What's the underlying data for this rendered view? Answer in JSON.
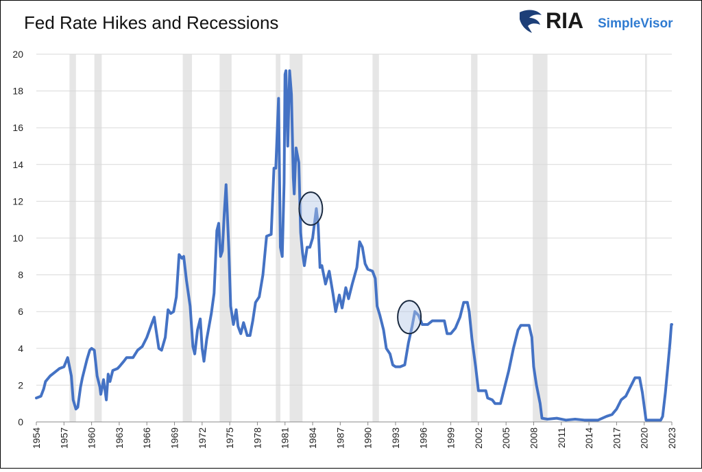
{
  "chart_data": {
    "type": "line",
    "title": "Fed Rate Hikes and Recessions",
    "logo": {
      "brand": "RIA",
      "product": "SimpleVisor"
    },
    "color": "#4472c4",
    "grid": true,
    "x": [
      1954.0,
      1954.5,
      1954.8,
      1955.0,
      1955.5,
      1956.0,
      1956.5,
      1957.0,
      1957.4,
      1957.8,
      1958.0,
      1958.3,
      1958.5,
      1958.8,
      1959.0,
      1959.5,
      1959.8,
      1960.0,
      1960.3,
      1960.6,
      1960.9,
      1961.0,
      1961.3,
      1961.6,
      1961.8,
      1962.0,
      1962.3,
      1962.8,
      1963.0,
      1963.5,
      1963.8,
      1964.5,
      1965.0,
      1965.5,
      1966.0,
      1966.5,
      1966.8,
      1967.0,
      1967.3,
      1967.6,
      1968.0,
      1968.3,
      1968.6,
      1968.9,
      1969.2,
      1969.5,
      1969.8,
      1970.0,
      1970.3,
      1970.7,
      1971.0,
      1971.2,
      1971.5,
      1971.8,
      1972.0,
      1972.2,
      1972.5,
      1973.0,
      1973.3,
      1973.6,
      1973.8,
      1974.0,
      1974.2,
      1974.4,
      1974.6,
      1974.9,
      1975.1,
      1975.4,
      1975.7,
      1975.9,
      1976.2,
      1976.5,
      1976.9,
      1977.2,
      1977.5,
      1977.8,
      1978.2,
      1978.6,
      1979.0,
      1979.5,
      1979.8,
      1980.0,
      1980.3,
      1980.5,
      1980.7,
      1980.9,
      1981.0,
      1981.1,
      1981.3,
      1981.5,
      1981.7,
      1981.9,
      1982.0,
      1982.2,
      1982.5,
      1982.7,
      1982.9,
      1983.1,
      1983.4,
      1983.7,
      1984.0,
      1984.4,
      1984.6,
      1984.8,
      1985.0,
      1985.4,
      1985.8,
      1986.2,
      1986.5,
      1986.9,
      1987.2,
      1987.6,
      1987.9,
      1988.3,
      1988.8,
      1989.1,
      1989.4,
      1989.7,
      1990.0,
      1990.5,
      1990.8,
      1991.0,
      1991.3,
      1991.7,
      1992.0,
      1992.4,
      1992.7,
      1993.0,
      1993.5,
      1994.0,
      1994.4,
      1994.8,
      1995.1,
      1995.5,
      1995.9,
      1996.5,
      1997.0,
      1997.5,
      1998.3,
      1998.6,
      1999.0,
      1999.5,
      2000.0,
      2000.4,
      2000.8,
      2001.0,
      2001.3,
      2001.7,
      2002.0,
      2002.8,
      2003.0,
      2003.5,
      2003.8,
      2004.4,
      2004.8,
      2005.3,
      2005.8,
      2006.3,
      2006.6,
      2007.5,
      2007.8,
      2008.0,
      2008.3,
      2008.7,
      2008.9,
      2009.5,
      2010.5,
      2011.5,
      2012.5,
      2013.5,
      2015.0,
      2015.9,
      2016.5,
      2017.0,
      2017.5,
      2018.0,
      2018.5,
      2019.0,
      2019.5,
      2019.8,
      2020.2,
      2021.0,
      2021.8,
      2022.0,
      2022.3,
      2022.6,
      2022.8,
      2022.95,
      2023.0
    ],
    "values": [
      1.3,
      1.4,
      1.8,
      2.2,
      2.5,
      2.7,
      2.9,
      3.0,
      3.5,
      2.5,
      1.2,
      0.7,
      0.8,
      1.9,
      2.4,
      3.4,
      3.9,
      4.0,
      3.9,
      2.5,
      1.9,
      1.5,
      2.3,
      1.2,
      2.6,
      2.2,
      2.8,
      2.9,
      3.0,
      3.3,
      3.5,
      3.5,
      3.9,
      4.1,
      4.6,
      5.3,
      5.7,
      5.0,
      4.0,
      3.9,
      4.6,
      6.1,
      5.9,
      6.0,
      6.8,
      9.1,
      8.9,
      9.0,
      7.7,
      6.3,
      4.1,
      3.7,
      5.0,
      5.6,
      4.0,
      3.3,
      4.5,
      5.9,
      7.0,
      10.4,
      10.8,
      9.0,
      9.3,
      11.3,
      12.9,
      9.4,
      6.3,
      5.3,
      6.1,
      5.2,
      4.8,
      5.4,
      4.7,
      4.7,
      5.5,
      6.5,
      6.8,
      8.0,
      10.1,
      10.2,
      13.8,
      13.8,
      17.6,
      9.5,
      9.0,
      13.0,
      18.9,
      19.1,
      15.0,
      19.1,
      17.8,
      13.3,
      12.4,
      14.9,
      14.1,
      10.3,
      9.2,
      8.5,
      9.5,
      9.5,
      10.0,
      11.6,
      10.7,
      8.4,
      8.5,
      7.5,
      8.2,
      7.0,
      6.0,
      6.9,
      6.2,
      7.3,
      6.7,
      7.5,
      8.4,
      9.8,
      9.5,
      8.6,
      8.3,
      8.2,
      7.8,
      6.3,
      5.8,
      5.0,
      4.0,
      3.7,
      3.1,
      3.0,
      3.0,
      3.1,
      4.3,
      5.2,
      6.0,
      5.8,
      5.3,
      5.3,
      5.5,
      5.5,
      5.5,
      4.8,
      4.8,
      5.1,
      5.7,
      6.5,
      6.5,
      6.0,
      4.5,
      3.0,
      1.7,
      1.7,
      1.3,
      1.2,
      1.0,
      1.0,
      1.8,
      2.8,
      4.0,
      5.0,
      5.25,
      5.25,
      4.6,
      3.0,
      2.0,
      1.0,
      0.2,
      0.15,
      0.2,
      0.1,
      0.15,
      0.1,
      0.1,
      0.3,
      0.4,
      0.7,
      1.2,
      1.4,
      1.9,
      2.4,
      2.4,
      1.6,
      0.1,
      0.1,
      0.1,
      0.3,
      1.6,
      3.2,
      4.3,
      5.3,
      5.3
    ],
    "recessions": [
      [
        1957.6,
        1958.3
      ],
      [
        1960.3,
        1961.1
      ],
      [
        1969.9,
        1970.9
      ],
      [
        1973.9,
        1975.2
      ],
      [
        1980.0,
        1980.5
      ],
      [
        1981.5,
        1982.9
      ],
      [
        1990.5,
        1991.2
      ],
      [
        2001.2,
        2001.9
      ],
      [
        2007.9,
        2009.5
      ],
      [
        2020.1,
        2020.3
      ]
    ],
    "highlights": [
      {
        "x": 1983.8,
        "y": 11.6
      },
      {
        "x": 1994.5,
        "y": 5.7
      }
    ],
    "xlim": [
      1954,
      2023
    ],
    "xticks": [
      1954,
      1957,
      1960,
      1963,
      1966,
      1969,
      1972,
      1975,
      1978,
      1981,
      1984,
      1987,
      1990,
      1993,
      1996,
      1999,
      2002,
      2005,
      2008,
      2011,
      2014,
      2017,
      2020,
      2023
    ],
    "ylim": [
      0,
      20
    ],
    "yticks": [
      0,
      2,
      4,
      6,
      8,
      10,
      12,
      14,
      16,
      18,
      20
    ]
  }
}
